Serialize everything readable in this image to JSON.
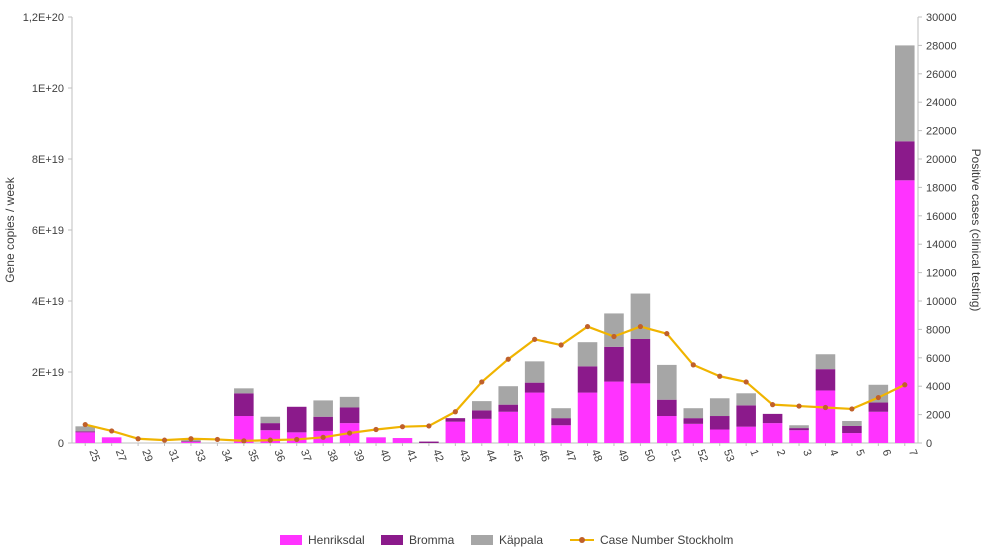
{
  "chart_data": {
    "type": "bar",
    "stacked": true,
    "categories": [
      "25",
      "27",
      "29",
      "31",
      "33",
      "34",
      "35",
      "36",
      "37",
      "38",
      "39",
      "40",
      "41",
      "42",
      "43",
      "44",
      "45",
      "46",
      "47",
      "48",
      "49",
      "50",
      "51",
      "52",
      "53",
      "1",
      "2",
      "3",
      "4",
      "5",
      "6",
      "7"
    ],
    "series": [
      {
        "name": "Henriksdal",
        "color": "#ff33ff",
        "axis": "left",
        "values": [
          3e+18,
          1.6e+18,
          0,
          0,
          3e+17,
          0,
          7.6e+18,
          3.6e+18,
          3e+18,
          3.4e+18,
          5.6e+18,
          1.6e+18,
          1.4e+18,
          0,
          6e+18,
          6.8e+18,
          8.8e+18,
          1.42e+19,
          5e+18,
          1.42e+19,
          1.73e+19,
          1.68e+19,
          7.6e+18,
          5.4e+18,
          3.8e+18,
          4.6e+18,
          5.6e+18,
          3.6e+18,
          1.48e+19,
          2.8e+18,
          8.8e+18,
          7.4e+19
        ]
      },
      {
        "name": "Bromma",
        "color": "#8b1a8b",
        "axis": "left",
        "values": [
          3e+17,
          0,
          0,
          0,
          2e+17,
          0,
          6.4e+18,
          2e+18,
          7.2e+18,
          4e+18,
          4.4e+18,
          0,
          0,
          4e+17,
          1e+18,
          2.4e+18,
          2e+18,
          2.8e+18,
          2e+18,
          7.4e+18,
          9.8e+18,
          1.25e+19,
          4.6e+18,
          1.6e+18,
          3.8e+18,
          6e+18,
          2.6e+18,
          6e+17,
          6e+18,
          2e+18,
          2.6e+18,
          1.1e+19
        ]
      },
      {
        "name": "Käppala",
        "color": "#a6a6a6",
        "axis": "left",
        "values": [
          1.4e+18,
          0,
          0,
          0,
          6e+17,
          0,
          1.4e+18,
          1.8e+18,
          0,
          4.6e+18,
          3e+18,
          0,
          0,
          0,
          0,
          2.6e+18,
          5.2e+18,
          6e+18,
          2.8e+18,
          6.8e+18,
          9.4e+18,
          1.28e+19,
          9.8e+18,
          2.8e+18,
          5e+18,
          3.4e+18,
          0,
          8e+17,
          4.2e+18,
          1.4e+18,
          5e+18,
          2.7e+19
        ]
      },
      {
        "name": "Case Number Stockholm",
        "type": "line",
        "color": "#f0b400",
        "marker_color": "#c0602a",
        "axis": "right",
        "values": [
          1300,
          850,
          300,
          200,
          300,
          250,
          150,
          200,
          250,
          400,
          700,
          950,
          1150,
          1200,
          2200,
          4300,
          5900,
          7300,
          6900,
          8200,
          7500,
          8200,
          7700,
          5500,
          4700,
          4300,
          2700,
          2600,
          2500,
          2400,
          3200,
          4100
        ]
      }
    ],
    "y_left": {
      "label": "Gene copies / week",
      "ylim": [
        0,
        1.2e+20
      ],
      "ticks": [
        0,
        2e+19,
        4e+19,
        6e+19,
        8e+19,
        1e+20,
        1.2e+20
      ],
      "tick_labels": [
        "0",
        "2E+19",
        "4E+19",
        "6E+19",
        "8E+19",
        "1E+20",
        "1,2E+20"
      ]
    },
    "y_right": {
      "label": "Positive cases (clinical testing)",
      "ylim": [
        0,
        30000
      ],
      "ticks": [
        0,
        2000,
        4000,
        6000,
        8000,
        10000,
        12000,
        14000,
        16000,
        18000,
        20000,
        22000,
        24000,
        26000,
        28000,
        30000
      ],
      "tick_labels": [
        "0",
        "2000",
        "4000",
        "6000",
        "8000",
        "10000",
        "12000",
        "14000",
        "16000",
        "18000",
        "20000",
        "22000",
        "24000",
        "26000",
        "28000",
        "30000"
      ]
    },
    "grid": false,
    "legend_position": "bottom"
  },
  "legend": {
    "henriksdal": "Henriksdal",
    "bromma": "Bromma",
    "kappala": "Käppala",
    "cases": "Case Number Stockholm"
  }
}
